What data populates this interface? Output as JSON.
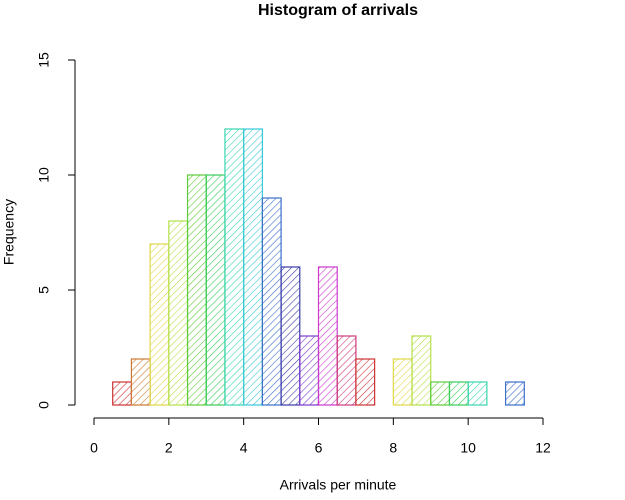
{
  "chart_data": {
    "type": "histogram",
    "title": "Histogram of arrivals",
    "x_label": "Arrivals per minute",
    "y_label": "Frequency",
    "bins": [
      0.5,
      1,
      1.5,
      2,
      2.5,
      3,
      3.5,
      4,
      4.5,
      5,
      5.5,
      6,
      6.5,
      7,
      7.5,
      8,
      8.5,
      9,
      9.5,
      10,
      10.5,
      11,
      11.5
    ],
    "values": [
      1,
      2,
      7,
      8,
      10,
      10,
      12,
      12,
      9,
      6,
      3,
      6,
      3,
      2,
      0,
      2,
      3,
      1,
      1,
      1,
      0,
      1
    ],
    "colors": [
      "#cc3333",
      "#cc7a33",
      "#e0d84a",
      "#b5e04a",
      "#5ccc3a",
      "#3acc5a",
      "#3ad6b0",
      "#3ac8d6",
      "#3a6fcc",
      "#3a3aa8",
      "#7a3acc",
      "#cc3acc",
      "#cc3a7a",
      "#cc3333",
      "#cc7a33",
      "#e0d84a",
      "#b5e04a",
      "#5ccc3a",
      "#3acc5a",
      "#3ad6b0",
      "#3ac8d6",
      "#3a6fcc"
    ],
    "xlim": [
      0,
      12
    ],
    "xticks": [
      0,
      2,
      4,
      6,
      8,
      10,
      12
    ],
    "ylim": [
      0,
      15
    ],
    "yticks": [
      0,
      5,
      10,
      15
    ]
  }
}
